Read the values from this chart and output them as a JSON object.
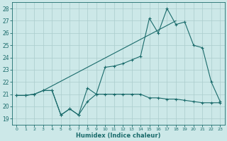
{
  "xlabel": "Humidex (Indice chaleur)",
  "xlim": [
    -0.5,
    23.5
  ],
  "ylim": [
    18.5,
    28.5
  ],
  "yticks": [
    19,
    20,
    21,
    22,
    23,
    24,
    25,
    26,
    27,
    28
  ],
  "xticks": [
    0,
    1,
    2,
    3,
    4,
    5,
    6,
    7,
    8,
    9,
    10,
    11,
    12,
    13,
    14,
    15,
    16,
    17,
    18,
    19,
    20,
    21,
    22,
    23
  ],
  "bg_color": "#cce8e8",
  "grid_color": "#aacccc",
  "line_color": "#1a6b6b",
  "series_flat": {
    "x": [
      0,
      1,
      2,
      3,
      4,
      5,
      6,
      7,
      8,
      9,
      10,
      11,
      12,
      13,
      14,
      15,
      16,
      17,
      18,
      19,
      20,
      21,
      22,
      23
    ],
    "y": [
      20.9,
      20.9,
      21.0,
      21.3,
      21.3,
      19.3,
      19.8,
      19.3,
      20.4,
      21.0,
      21.0,
      21.0,
      21.0,
      21.0,
      21.0,
      20.7,
      20.7,
      20.6,
      20.6,
      20.5,
      20.4,
      20.3,
      20.3,
      20.3
    ]
  },
  "series_jagged": {
    "x": [
      0,
      1,
      2,
      3,
      4,
      5,
      6,
      7,
      8,
      9,
      10,
      11,
      12,
      13,
      14,
      15,
      16,
      17,
      18,
      19,
      20,
      21,
      22,
      23
    ],
    "y": [
      20.9,
      20.9,
      21.0,
      21.3,
      21.3,
      19.3,
      19.8,
      19.3,
      21.5,
      21.0,
      23.2,
      23.3,
      23.5,
      23.8,
      24.1,
      27.2,
      26.0,
      28.0,
      26.7,
      26.9,
      25.0,
      24.8,
      22.0,
      20.4
    ]
  },
  "series_trend": {
    "x": [
      3,
      18
    ],
    "y": [
      21.3,
      27.0
    ]
  }
}
